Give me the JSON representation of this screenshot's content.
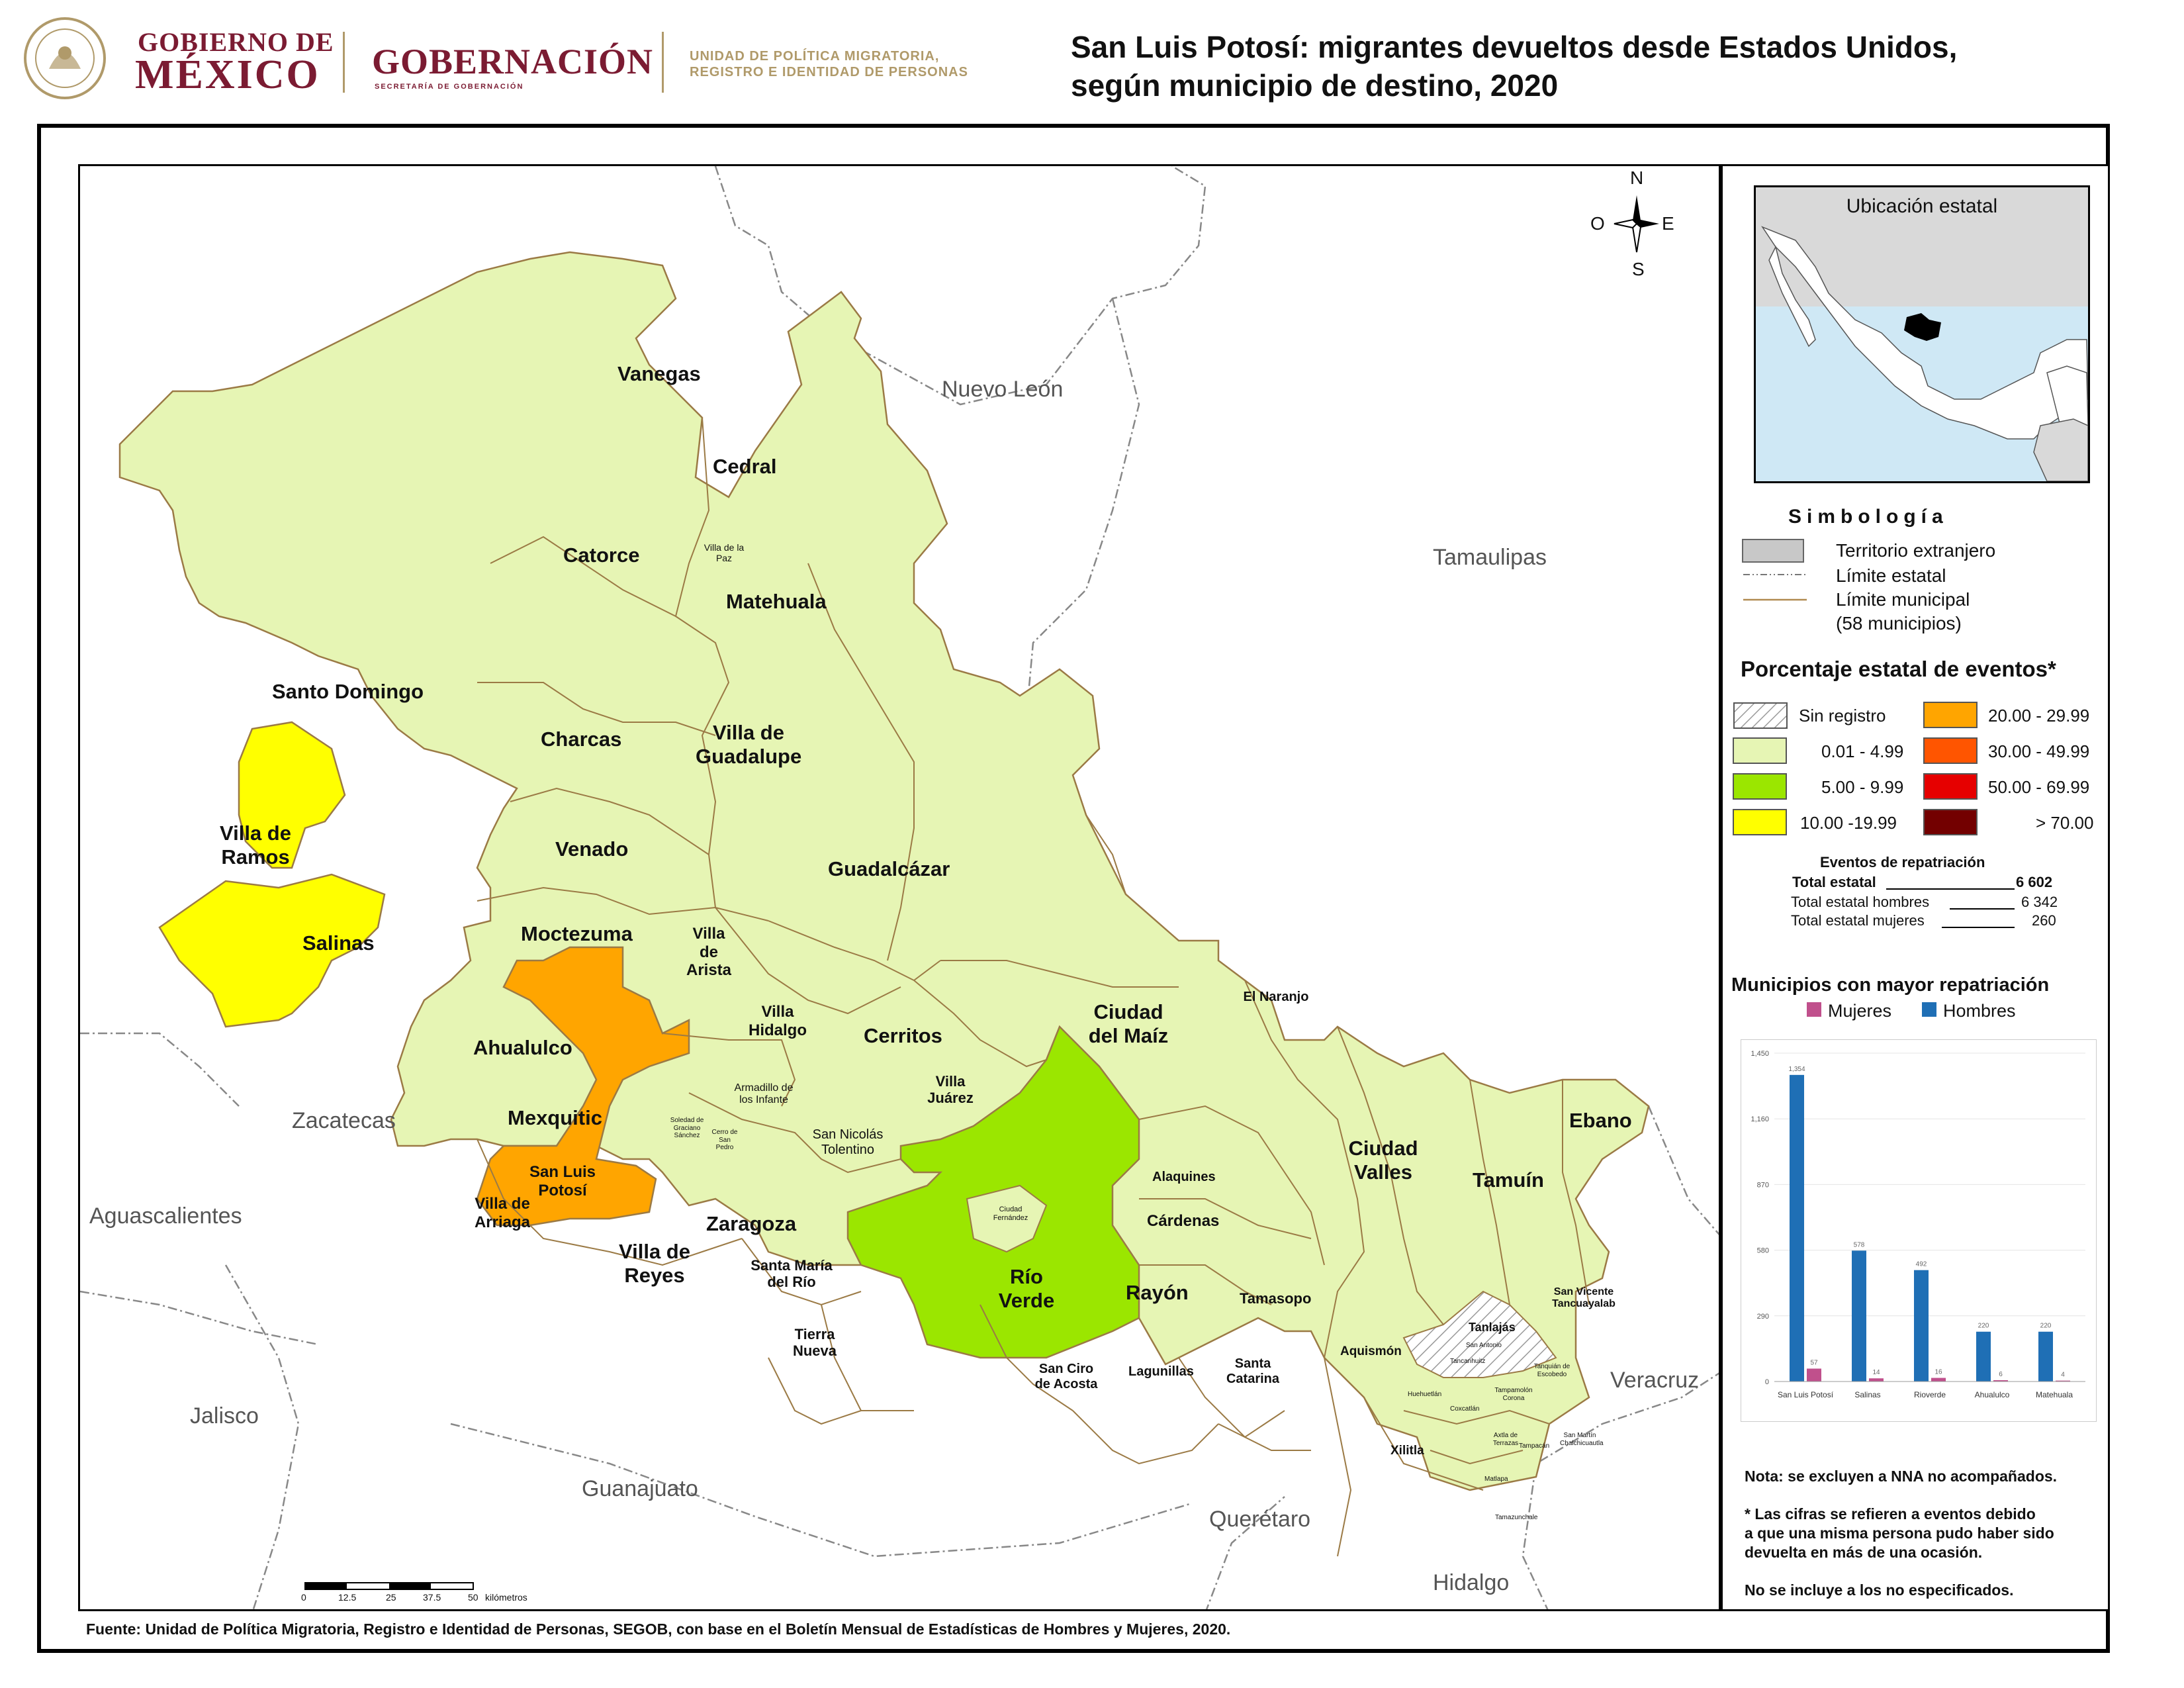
{
  "header": {
    "gob_line1": "GOBIERNO DE",
    "gob_line2": "MÉXICO",
    "gobernacion": "GOBERNACIÓN",
    "gobernacion_sub": "SECRETARÍA DE GOBERNACIÓN",
    "upm_line1": "UNIDAD DE POLÍTICA MIGRATORIA,",
    "upm_line2": "REGISTRO E IDENTIDAD DE PERSONAS",
    "title_line1": "San Luis Potosí: migrantes devueltos desde Estados Unidos,",
    "title_line2": "según municipio de destino, 2020"
  },
  "neighbors": {
    "nuevo_leon": "Nuevo León",
    "tamaulipas": "Tamaulipas",
    "zacatecas": "Zacatecas",
    "aguascalientes": "Aguascalientes",
    "jalisco": "Jalisco",
    "guanajuato": "Guanajuato",
    "queretaro": "Querétaro",
    "hidalgo": "Hidalgo",
    "veracruz": "Veracruz"
  },
  "compass": {
    "n": "N",
    "s": "S",
    "e": "E",
    "o": "O"
  },
  "municipalities": {
    "vanegas": "Vanegas",
    "cedral": "Cedral",
    "catorce": "Catorce",
    "villa_de_la_paz": "Villa de la Paz",
    "matehuala": "Matehuala",
    "santo_domingo": "Santo Domingo",
    "charcas": "Charcas",
    "villa_de_guadalupe": "Villa de Guadalupe",
    "villa_de_ramos": "Villa de Ramos",
    "venado": "Venado",
    "guadalcazar": "Guadalcázar",
    "salinas": "Salinas",
    "moctezuma": "Moctezuma",
    "villa_de_arista": "Villa de Arista",
    "villa_hidalgo": "Villa Hidalgo",
    "cerritos": "Cerritos",
    "ciudad_del_maiz": "Ciudad del Maíz",
    "el_naranjo": "El Naranjo",
    "ahualulco": "Ahualulco",
    "mexquitic": "Mexquitic",
    "soledad": "Soledad de Graciano Sánchez",
    "cerro_de_san_pedro": "Cerro de San Pedro",
    "armadillo": "Armadillo de los Infante",
    "san_nicolas_tolentino": "San Nicolás Tolentino",
    "villa_juarez": "Villa Juárez",
    "san_luis_potosi": "San Luis Potosí",
    "villa_de_arriaga": "Villa de Arriaga",
    "villa_de_reyes": "Villa de Reyes",
    "zaragoza": "Zaragoza",
    "santa_maria_del_rio": "Santa María del Río",
    "tierra_nueva": "Tierra Nueva",
    "ciudad_fernandez": "Ciudad Fernández",
    "rio_verde": "Río Verde",
    "alaquines": "Alaquines",
    "cardenas": "Cárdenas",
    "rayon": "Rayón",
    "tamasopo": "Tamasopo",
    "san_ciro_de_acosta": "San Ciro de Acosta",
    "lagunillas": "Lagunillas",
    "santa_catarina": "Santa Catarina",
    "ciudad_valles": "Ciudad Valles",
    "tamuin": "Tamuín",
    "ebano": "Ebano",
    "tanlajas": "Tanlajás",
    "san_vicente": "San Vicente Tancuayalab",
    "aquismon": "Aquismón",
    "xilitla": "Xilitla",
    "huehuetlan": "Huehuetlán",
    "coxcatlan": "Coxcatlán",
    "tancanhuitz": "Tancanhuitz",
    "tanquian": "Tanquián de Escobedo",
    "tampamolon": "Tampamolón Corona",
    "axtla": "Axtla de Terrazas",
    "tampacan": "Tampacán",
    "san_martin": "San Martín Chalchicuautla",
    "matlapa": "Matlapa",
    "tamazunchale": "Tamazunchale",
    "san_antonio": "San Antonio",
    "tanlajas_small": "Tancanhuitz"
  },
  "scale": {
    "ticks": [
      "0",
      "12.5",
      "25",
      "37.5",
      "50"
    ],
    "unit": "kilómetros"
  },
  "inset": {
    "title": "Ubicación estatal"
  },
  "legend": {
    "title": "Simbología",
    "foreign": "Territorio extranjero",
    "state_limit": "Límite estatal",
    "mun_limit": "Límite municipal",
    "mun_count": "(58 municipios)",
    "pct_title": "Porcentaje estatal de eventos*",
    "ranges": [
      {
        "label": "Sin registro",
        "color": "hatch"
      },
      {
        "label": "0.01  - 4.99",
        "color": "#e6f5b4"
      },
      {
        "label": "5.00  - 9.99",
        "color": "#9be600"
      },
      {
        "label": "10.00 -19.99",
        "color": "#ffff00"
      },
      {
        "label": "20.00 - 29.99",
        "color": "#ffaa00"
      },
      {
        "label": "30.00 - 49.99",
        "color": "#ff5500"
      },
      {
        "label": "50.00 - 69.99",
        "color": "#e60000"
      },
      {
        "label": "> 70.00",
        "color": "#730000"
      }
    ],
    "events_title": "Eventos de repatriación",
    "total_label": "Total estatal",
    "total_value": "6 602",
    "men_label": "Total estatal hombres",
    "men_value": "6 342",
    "women_label": "Total estatal mujeres",
    "women_value": "260"
  },
  "chart_data": {
    "type": "bar",
    "title": "Municipios con mayor repatriación",
    "categories": [
      "San Luis Potosí",
      "Salinas",
      "Rioverde",
      "Ahualulco",
      "Matehuala"
    ],
    "series": [
      {
        "name": "Mujeres",
        "color": "#c0508c",
        "values": [
          57,
          14,
          16,
          6,
          4
        ]
      },
      {
        "name": "Hombres",
        "color": "#1f6fb5",
        "values": [
          1354,
          578,
          492,
          220,
          220
        ]
      }
    ],
    "yticks": [
      "0",
      "290",
      "580",
      "870",
      "1,160",
      "1,450"
    ],
    "ylim": [
      0,
      1450
    ]
  },
  "notes": {
    "nna": "Nota: se excluyen a NNA no acompañados.",
    "cifras_1": "* Las cifras se refieren a eventos debido",
    "cifras_2": "a que una misma persona pudo haber sido",
    "cifras_3": "devuelta en más de una ocasión.",
    "no_esp": "No se incluye a los no especificados."
  },
  "source": "Fuente: Unidad de Política Migratoria, Registro e Identidad de Personas, SEGOB, con base en el Boletín Mensual de Estadísticas de Hombres y Mujeres, 2020."
}
